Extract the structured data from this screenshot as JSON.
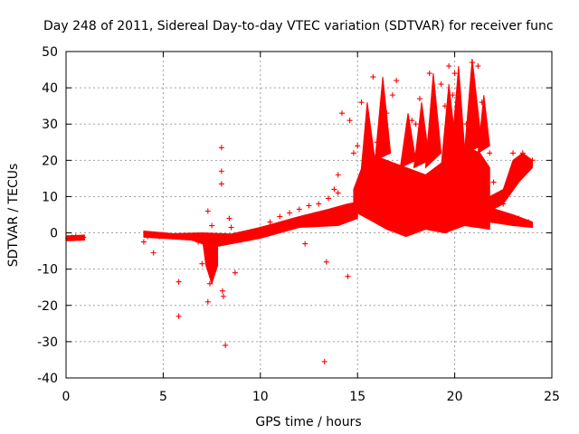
{
  "chart_data": {
    "type": "scatter",
    "title": "Day 248 of 2011, Sidereal Day-to-day VTEC variation (SDTVAR) for receiver func",
    "xlabel": "GPS time / hours",
    "ylabel": "SDTVAR / TECUs",
    "xlim": [
      0,
      25
    ],
    "ylim": [
      -40,
      50
    ],
    "xticks": [
      "0",
      "5",
      "10",
      "15",
      "20",
      "25"
    ],
    "yticks": [
      "50",
      "40",
      "30",
      "20",
      "10",
      "0",
      "-10",
      "-20",
      "-30",
      "-40"
    ],
    "grid": true,
    "marker": "+",
    "color": "#ff0000",
    "series": [
      {
        "name": "SDTVAR",
        "x": [
          0.1,
          0.3,
          0.5,
          0.7,
          0.9,
          4.0,
          4.2,
          4.5,
          4.8,
          5.0,
          5.5,
          5.8,
          5.8,
          6.0,
          6.5,
          6.8,
          7.0,
          7.3,
          7.3,
          7.4,
          7.5,
          7.5,
          7.6,
          8.0,
          8.0,
          8.0,
          8.05,
          8.1,
          8.2,
          8.4,
          8.5,
          8.7,
          9.0,
          9.5,
          10.0,
          10.5,
          11.0,
          11.5,
          12.0,
          12.3,
          12.5,
          12.8,
          13.0,
          13.3,
          13.4,
          13.5,
          13.8,
          14.0,
          14.0,
          14.2,
          14.5,
          14.6,
          14.8,
          15.0,
          15.2,
          15.5,
          15.8,
          16.0,
          16.2,
          16.5,
          16.8,
          17.0,
          17.3,
          17.5,
          17.8,
          18.0,
          18.2,
          18.5,
          18.7,
          19.0,
          19.3,
          19.5,
          19.7,
          19.9,
          20.0,
          20.3,
          20.6,
          20.9,
          21.2,
          21.4,
          21.6,
          21.8,
          22.0,
          22.5,
          23.0,
          23.3,
          23.5,
          23.8,
          24.0
        ],
        "y": [
          -1.5,
          -1.2,
          -1.0,
          -1.5,
          -1.2,
          -2.5,
          -1.0,
          -5.5,
          -1.0,
          -0.5,
          -1.0,
          -13.5,
          -23.0,
          -1.0,
          -1.5,
          -2.5,
          -8.5,
          -19.0,
          6.0,
          -14.0,
          -8.0,
          2.0,
          -5.0,
          23.5,
          17.0,
          13.5,
          -16.0,
          -17.5,
          -31.0,
          4.0,
          1.5,
          -11.0,
          -2.0,
          -0.5,
          1.0,
          3.0,
          4.5,
          5.5,
          6.5,
          -3.0,
          7.5,
          5.0,
          8.0,
          -35.5,
          -8.0,
          9.5,
          12.0,
          11.0,
          16.0,
          33.0,
          -12.0,
          31.0,
          22.0,
          24.0,
          36.0,
          30.0,
          43.0,
          25.0,
          8.0,
          33.0,
          38.0,
          42.0,
          15.0,
          5.0,
          31.0,
          30.0,
          37.0,
          24.0,
          44.0,
          2.0,
          41.0,
          35.0,
          46.0,
          38.0,
          44.0,
          28.0,
          30.0,
          47.0,
          46.0,
          36.0,
          25.0,
          22.0,
          14.0,
          8.0,
          22.0,
          4.0,
          22.0,
          3.0,
          20.0
        ]
      }
    ]
  }
}
